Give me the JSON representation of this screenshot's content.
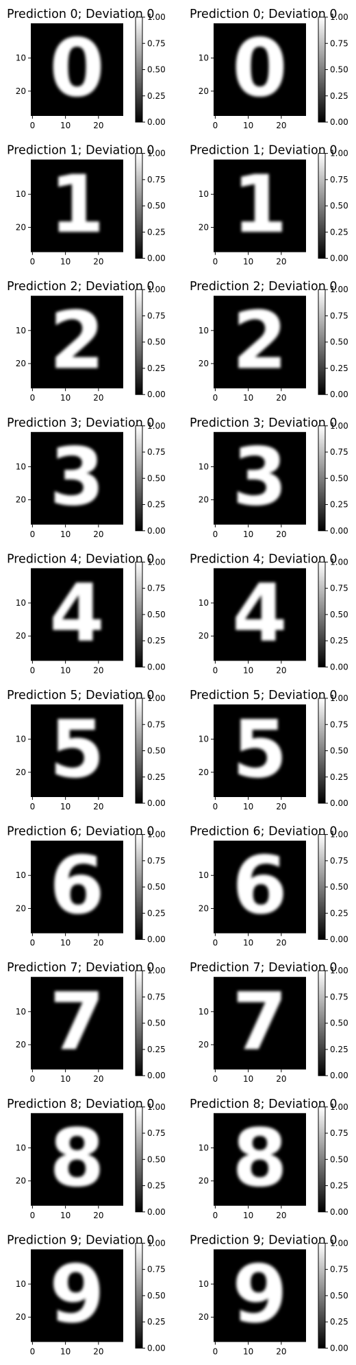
{
  "figure": {
    "background": "#ffffff",
    "colormap": "gray",
    "image_background": "#000000"
  },
  "chart_data": [
    {
      "type": "heatmap",
      "digit": "0",
      "title": "Prediction 0; Deviation 0",
      "x_ticks": [
        "0",
        "10",
        "20"
      ],
      "y_ticks": [
        "10",
        "20"
      ],
      "colorbar": {
        "range": [
          0,
          1
        ],
        "ticks": [
          "0.00",
          "0.25",
          "0.50",
          "0.75",
          "1.00"
        ]
      }
    },
    {
      "type": "heatmap",
      "digit": "0",
      "title": "Prediction 0; Deviation 0",
      "x_ticks": [
        "0",
        "10",
        "20"
      ],
      "y_ticks": [
        "10",
        "20"
      ],
      "colorbar": {
        "range": [
          0,
          1
        ],
        "ticks": [
          "0.00",
          "0.25",
          "0.50",
          "0.75",
          "1.00"
        ]
      }
    },
    {
      "type": "heatmap",
      "digit": "1",
      "title": "Prediction 1; Deviation 0",
      "x_ticks": [
        "0",
        "10",
        "20"
      ],
      "y_ticks": [
        "10",
        "20"
      ],
      "colorbar": {
        "range": [
          0,
          1
        ],
        "ticks": [
          "0.00",
          "0.25",
          "0.50",
          "0.75",
          "1.00"
        ]
      }
    },
    {
      "type": "heatmap",
      "digit": "1",
      "title": "Prediction 1; Deviation 0",
      "x_ticks": [
        "0",
        "10",
        "20"
      ],
      "y_ticks": [
        "10",
        "20"
      ],
      "colorbar": {
        "range": [
          0,
          1
        ],
        "ticks": [
          "0.00",
          "0.25",
          "0.50",
          "0.75",
          "1.00"
        ]
      }
    },
    {
      "type": "heatmap",
      "digit": "2",
      "title": "Prediction 2; Deviation 0",
      "x_ticks": [
        "0",
        "10",
        "20"
      ],
      "y_ticks": [
        "10",
        "20"
      ],
      "colorbar": {
        "range": [
          0,
          1
        ],
        "ticks": [
          "0.00",
          "0.25",
          "0.50",
          "0.75",
          "1.00"
        ]
      }
    },
    {
      "type": "heatmap",
      "digit": "2",
      "title": "Prediction 2; Deviation 0",
      "x_ticks": [
        "0",
        "10",
        "20"
      ],
      "y_ticks": [
        "10",
        "20"
      ],
      "colorbar": {
        "range": [
          0,
          1
        ],
        "ticks": [
          "0.00",
          "0.25",
          "0.50",
          "0.75",
          "1.00"
        ]
      }
    },
    {
      "type": "heatmap",
      "digit": "3",
      "title": "Prediction 3; Deviation 0",
      "x_ticks": [
        "0",
        "10",
        "20"
      ],
      "y_ticks": [
        "10",
        "20"
      ],
      "colorbar": {
        "range": [
          0,
          1
        ],
        "ticks": [
          "0.00",
          "0.25",
          "0.50",
          "0.75",
          "1.00"
        ]
      }
    },
    {
      "type": "heatmap",
      "digit": "3",
      "title": "Prediction 3; Deviation 0",
      "x_ticks": [
        "0",
        "10",
        "20"
      ],
      "y_ticks": [
        "10",
        "20"
      ],
      "colorbar": {
        "range": [
          0,
          1
        ],
        "ticks": [
          "0.00",
          "0.25",
          "0.50",
          "0.75",
          "1.00"
        ]
      }
    },
    {
      "type": "heatmap",
      "digit": "4",
      "title": "Prediction 4; Deviation 0",
      "x_ticks": [
        "0",
        "10",
        "20"
      ],
      "y_ticks": [
        "10",
        "20"
      ],
      "colorbar": {
        "range": [
          0,
          1
        ],
        "ticks": [
          "0.00",
          "0.25",
          "0.50",
          "0.75",
          "1.00"
        ]
      }
    },
    {
      "type": "heatmap",
      "digit": "4",
      "title": "Prediction 4; Deviation 0",
      "x_ticks": [
        "0",
        "10",
        "20"
      ],
      "y_ticks": [
        "10",
        "20"
      ],
      "colorbar": {
        "range": [
          0,
          1
        ],
        "ticks": [
          "0.00",
          "0.25",
          "0.50",
          "0.75",
          "1.00"
        ]
      }
    },
    {
      "type": "heatmap",
      "digit": "5",
      "title": "Prediction 5; Deviation 0",
      "x_ticks": [
        "0",
        "10",
        "20"
      ],
      "y_ticks": [
        "10",
        "20"
      ],
      "colorbar": {
        "range": [
          0,
          1
        ],
        "ticks": [
          "0.00",
          "0.25",
          "0.50",
          "0.75",
          "1.00"
        ]
      }
    },
    {
      "type": "heatmap",
      "digit": "5",
      "title": "Prediction 5; Deviation 0",
      "x_ticks": [
        "0",
        "10",
        "20"
      ],
      "y_ticks": [
        "10",
        "20"
      ],
      "colorbar": {
        "range": [
          0,
          1
        ],
        "ticks": [
          "0.00",
          "0.25",
          "0.50",
          "0.75",
          "1.00"
        ]
      }
    },
    {
      "type": "heatmap",
      "digit": "6",
      "title": "Prediction 6; Deviation 0",
      "x_ticks": [
        "0",
        "10",
        "20"
      ],
      "y_ticks": [
        "10",
        "20"
      ],
      "colorbar": {
        "range": [
          0,
          1
        ],
        "ticks": [
          "0.00",
          "0.25",
          "0.50",
          "0.75",
          "1.00"
        ]
      }
    },
    {
      "type": "heatmap",
      "digit": "6",
      "title": "Prediction 6; Deviation 0",
      "x_ticks": [
        "0",
        "10",
        "20"
      ],
      "y_ticks": [
        "10",
        "20"
      ],
      "colorbar": {
        "range": [
          0,
          1
        ],
        "ticks": [
          "0.00",
          "0.25",
          "0.50",
          "0.75",
          "1.00"
        ]
      }
    },
    {
      "type": "heatmap",
      "digit": "7",
      "title": "Prediction 7; Deviation 0",
      "x_ticks": [
        "0",
        "10",
        "20"
      ],
      "y_ticks": [
        "10",
        "20"
      ],
      "colorbar": {
        "range": [
          0,
          1
        ],
        "ticks": [
          "0.00",
          "0.25",
          "0.50",
          "0.75",
          "1.00"
        ]
      }
    },
    {
      "type": "heatmap",
      "digit": "7",
      "title": "Prediction 7; Deviation 0",
      "x_ticks": [
        "0",
        "10",
        "20"
      ],
      "y_ticks": [
        "10",
        "20"
      ],
      "colorbar": {
        "range": [
          0,
          1
        ],
        "ticks": [
          "0.00",
          "0.25",
          "0.50",
          "0.75",
          "1.00"
        ]
      }
    },
    {
      "type": "heatmap",
      "digit": "8",
      "title": "Prediction 8; Deviation 0",
      "x_ticks": [
        "0",
        "10",
        "20"
      ],
      "y_ticks": [
        "10",
        "20"
      ],
      "colorbar": {
        "range": [
          0,
          1
        ],
        "ticks": [
          "0.00",
          "0.25",
          "0.50",
          "0.75",
          "1.00"
        ]
      }
    },
    {
      "type": "heatmap",
      "digit": "8",
      "title": "Prediction 8; Deviation 0",
      "x_ticks": [
        "0",
        "10",
        "20"
      ],
      "y_ticks": [
        "10",
        "20"
      ],
      "colorbar": {
        "range": [
          0,
          1
        ],
        "ticks": [
          "0.00",
          "0.25",
          "0.50",
          "0.75",
          "1.00"
        ]
      }
    },
    {
      "type": "heatmap",
      "digit": "9",
      "title": "Prediction 9; Deviation 0",
      "x_ticks": [
        "0",
        "10",
        "20"
      ],
      "y_ticks": [
        "10",
        "20"
      ],
      "colorbar": {
        "range": [
          0,
          1
        ],
        "ticks": [
          "0.00",
          "0.25",
          "0.50",
          "0.75",
          "1.00"
        ]
      }
    },
    {
      "type": "heatmap",
      "digit": "9",
      "title": "Prediction 9; Deviation 0",
      "x_ticks": [
        "0",
        "10",
        "20"
      ],
      "y_ticks": [
        "10",
        "20"
      ],
      "colorbar": {
        "range": [
          0,
          1
        ],
        "ticks": [
          "0.00",
          "0.25",
          "0.50",
          "0.75",
          "1.00"
        ]
      }
    }
  ]
}
